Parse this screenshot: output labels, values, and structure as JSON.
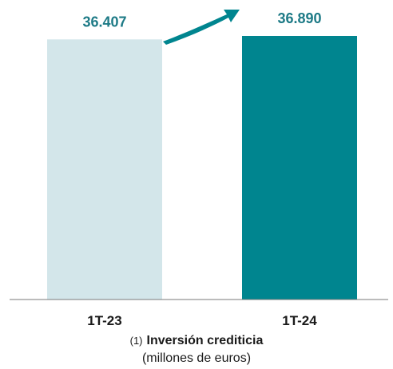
{
  "chart_data": {
    "type": "bar",
    "categories": [
      "1T-23",
      "1T-24"
    ],
    "values": [
      36407,
      36890
    ],
    "value_labels": [
      "36.407",
      "36.890"
    ],
    "colors": [
      "#d3e6ea",
      "#00858f"
    ],
    "label_color": "#1d7a86",
    "arrow_color": "#00858f",
    "title": "Inversión crediticia",
    "note": "(1)",
    "units": "(millones de euros)",
    "grid": false,
    "legend": "none"
  }
}
